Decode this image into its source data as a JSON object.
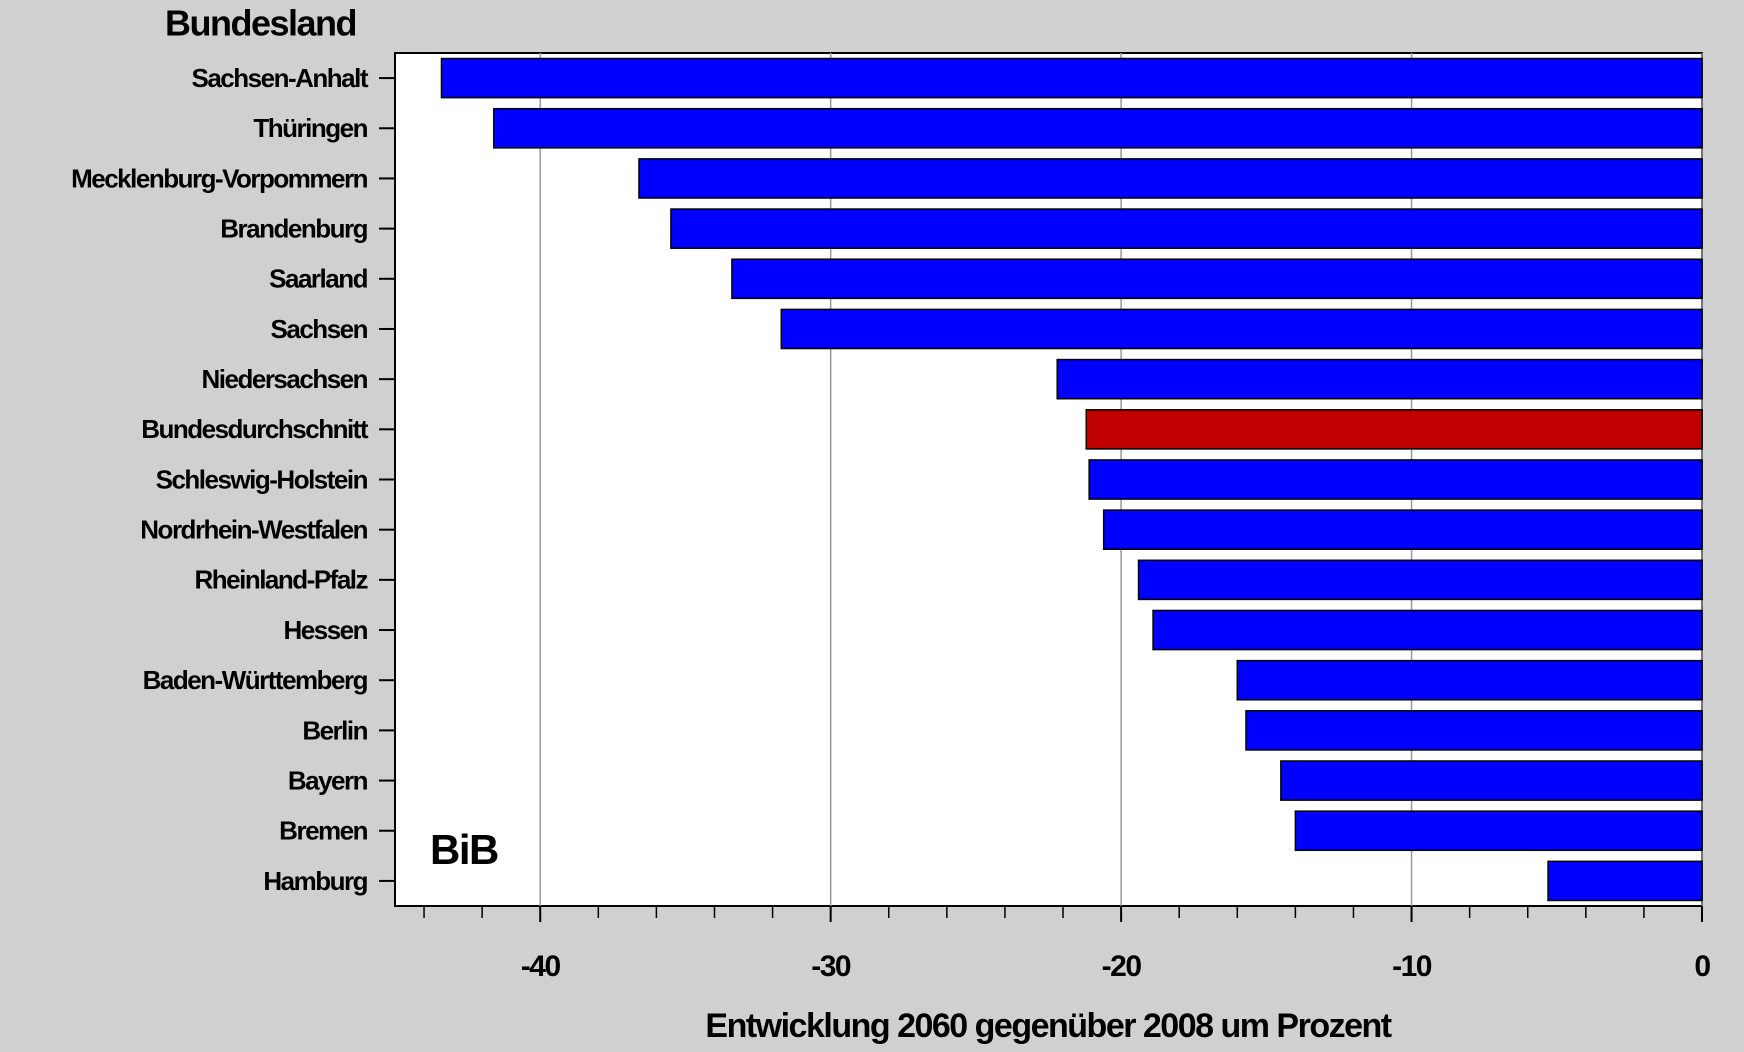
{
  "chart_data": {
    "type": "hbar",
    "y_label": "Bundesland",
    "x_label": "Entwicklung 2060 gegenüber 2008 um Prozent",
    "annotation": "BiB",
    "categories": [
      "Sachsen-Anhalt",
      "Thüringen",
      "Mecklenburg-Vorpommern",
      "Brandenburg",
      "Saarland",
      "Sachsen",
      "Niedersachsen",
      "Bundesdurchschnitt",
      "Schleswig-Holstein",
      "Nordrhein-Westfalen",
      "Rheinland-Pfalz",
      "Hessen",
      "Baden-Württemberg",
      "Berlin",
      "Bayern",
      "Bremen",
      "Hamburg"
    ],
    "values": [
      -43.4,
      -41.6,
      -36.6,
      -35.5,
      -33.4,
      -31.7,
      -22.2,
      -21.2,
      -21.1,
      -20.6,
      -19.4,
      -18.9,
      -16.0,
      -15.7,
      -14.5,
      -14.0,
      -5.3
    ],
    "colors": [
      "#0000ff",
      "#0000ff",
      "#0000ff",
      "#0000ff",
      "#0000ff",
      "#0000ff",
      "#0000ff",
      "#c00000",
      "#0000ff",
      "#0000ff",
      "#0000ff",
      "#0000ff",
      "#0000ff",
      "#0000ff",
      "#0000ff",
      "#0000ff",
      "#0000ff"
    ],
    "xlim": [
      -45,
      0
    ],
    "xticks": [
      -40,
      -30,
      -20,
      -10,
      0
    ],
    "xminorticks": [
      -44,
      -42,
      -38,
      -36,
      -34,
      -32,
      -28,
      -26,
      -24,
      -22,
      -18,
      -16,
      -14,
      -12,
      -8,
      -6,
      -4,
      -2
    ],
    "grid": true
  }
}
